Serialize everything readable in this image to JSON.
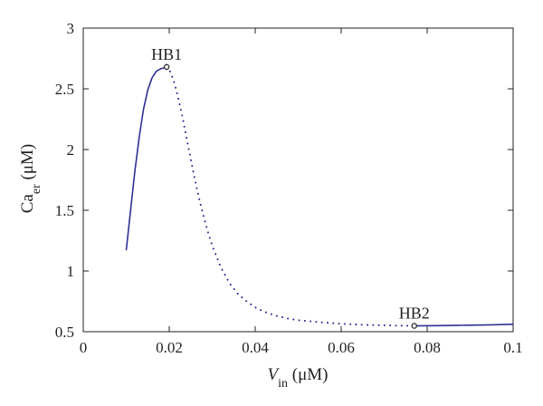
{
  "chart_data": {
    "type": "line",
    "title": "",
    "xlabel": {
      "main": "V",
      "sub": "in",
      "unit": " (μM)"
    },
    "ylabel": {
      "main": "Ca",
      "sub": "er",
      "unit": " (μM)"
    },
    "xlim": [
      0,
      0.1
    ],
    "ylim": [
      0.5,
      3
    ],
    "xticks": [
      0,
      0.02,
      0.04,
      0.06,
      0.08,
      0.1
    ],
    "yticks": [
      0.5,
      1,
      1.5,
      2,
      2.5,
      3
    ],
    "x_tick_labels": [
      "0",
      "0.02",
      "0.04",
      "0.06",
      "0.08",
      "0.1"
    ],
    "y_tick_labels": [
      "0.5",
      "1",
      "1.5",
      "2",
      "2.5",
      "3"
    ],
    "grid": false,
    "colors": {
      "curve": "#2e3192",
      "axis": "#231f20"
    },
    "series": [
      {
        "style": "solid",
        "x": [
          0.01,
          0.011,
          0.012,
          0.013,
          0.014,
          0.015,
          0.016,
          0.017,
          0.018,
          0.019,
          0.0194
        ],
        "y": [
          1.17,
          1.5,
          1.82,
          2.1,
          2.33,
          2.49,
          2.59,
          2.645,
          2.665,
          2.675,
          2.68
        ]
      },
      {
        "style": "dotted",
        "x": [
          0.0194,
          0.02,
          0.021,
          0.022,
          0.023,
          0.024,
          0.025,
          0.026,
          0.027,
          0.028,
          0.029,
          0.03,
          0.032,
          0.034,
          0.036,
          0.038,
          0.04,
          0.042,
          0.045,
          0.048,
          0.05,
          0.055,
          0.06,
          0.065,
          0.07,
          0.075,
          0.077
        ],
        "y": [
          2.68,
          2.66,
          2.57,
          2.44,
          2.28,
          2.1,
          1.92,
          1.75,
          1.59,
          1.45,
          1.32,
          1.21,
          1.03,
          0.9,
          0.81,
          0.75,
          0.7,
          0.665,
          0.63,
          0.605,
          0.595,
          0.578,
          0.565,
          0.557,
          0.552,
          0.549,
          0.548
        ]
      },
      {
        "style": "solid",
        "x": [
          0.077,
          0.08,
          0.085,
          0.09,
          0.095,
          0.1
        ],
        "y": [
          0.548,
          0.549,
          0.551,
          0.554,
          0.557,
          0.561
        ]
      }
    ],
    "annotations": [
      {
        "label": "HB1",
        "x": 0.0194,
        "y": 2.68,
        "anchor": "middle"
      },
      {
        "label": "HB2",
        "x": 0.077,
        "y": 0.548,
        "anchor": "middle"
      }
    ]
  }
}
